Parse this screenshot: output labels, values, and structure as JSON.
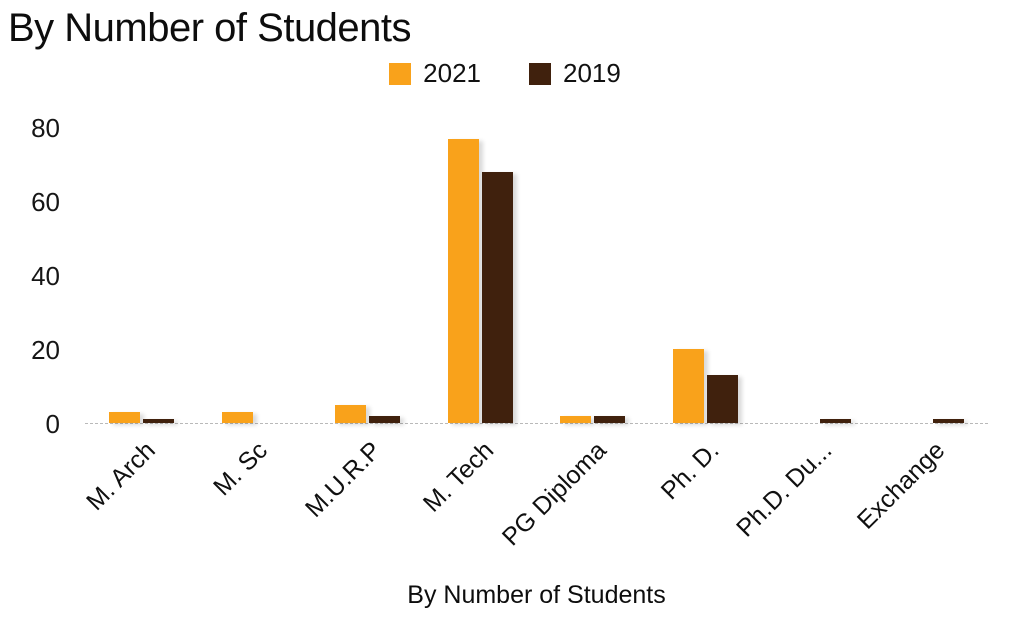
{
  "chart_data": {
    "type": "bar",
    "title": "By Number of Students",
    "xlabel": "By Number of Students",
    "ylabel": "",
    "ylim": [
      0,
      80
    ],
    "yticks": [
      0,
      20,
      40,
      60,
      80
    ],
    "grid": false,
    "legend_position": "top",
    "categories": [
      "M. Arch",
      "M. Sc",
      "M.U.R.P",
      "M. Tech",
      "PG Diploma",
      "Ph. D.",
      "Ph.D. Du...",
      "Exchange"
    ],
    "series": [
      {
        "name": "2021",
        "color": "#F9A21B",
        "values": [
          3,
          3,
          5,
          77,
          2,
          20,
          0,
          0
        ]
      },
      {
        "name": "2019",
        "color": "#40210D",
        "values": [
          1,
          0,
          2,
          68,
          2,
          13,
          1,
          1
        ]
      }
    ]
  }
}
